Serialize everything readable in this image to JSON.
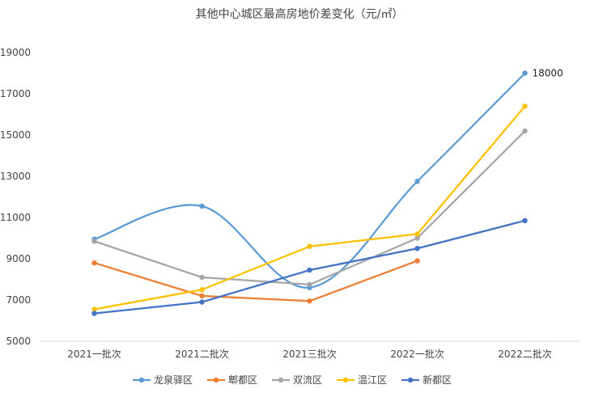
{
  "chart_data": {
    "type": "line",
    "title": "其他中心城区最高房地价差变化（元/㎡）",
    "categories": [
      "2021一批次",
      "2021二批次",
      "2021三批次",
      "2022一批次",
      "2022二批次"
    ],
    "ylim": [
      5000,
      19000
    ],
    "yticks": [
      5000,
      7000,
      9000,
      11000,
      13000,
      15000,
      17000,
      19000
    ],
    "ytick_labels": [
      "5000",
      "7000",
      "9000",
      "11000",
      "13000",
      "15000",
      "17000",
      "19000"
    ],
    "grid": false,
    "legend_position": "bottom",
    "series": [
      {
        "name": "龙泉驿区",
        "color": "#5B9BD5",
        "values": [
          9950,
          11550,
          7600,
          12750,
          18000
        ],
        "smooth": true
      },
      {
        "name": "郫都区",
        "color": "#ED7D31",
        "values": [
          8800,
          7200,
          6950,
          8900,
          null
        ],
        "smooth": false
      },
      {
        "name": "双流区",
        "color": "#A5A5A5",
        "values": [
          9850,
          8100,
          7750,
          10000,
          15200
        ],
        "smooth": false
      },
      {
        "name": "温江区",
        "color": "#FFC000",
        "values": [
          6550,
          7500,
          9600,
          10200,
          16400
        ],
        "smooth": false
      },
      {
        "name": "新都区",
        "color": "#4472C4",
        "values": [
          6350,
          6900,
          8450,
          9500,
          10850
        ],
        "smooth": false
      }
    ],
    "annotations": [
      {
        "series": "龙泉驿区",
        "category": "2022二批次",
        "text": "18000"
      }
    ]
  }
}
